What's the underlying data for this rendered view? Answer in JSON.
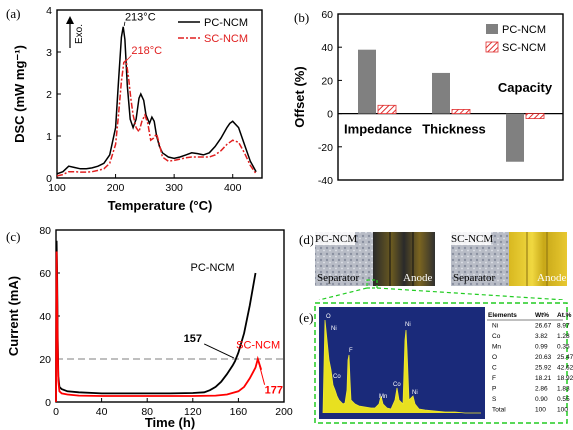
{
  "panels": {
    "a": {
      "label": "(a)",
      "exo_label": "Exo.",
      "xlabel": "Temperature (°C)",
      "ylabel": "DSC (mW mg⁻¹)",
      "xticks": [
        "100",
        "200",
        "300",
        "400"
      ],
      "yticks": [
        "0",
        "1",
        "2",
        "3",
        "4"
      ],
      "annotations": {
        "pc_peak": "213°C",
        "sc_peak": "218°C"
      },
      "legend": [
        "PC-NCM",
        "SC-NCM"
      ],
      "colors": {
        "pc": "#000000",
        "sc": "#e02020"
      }
    },
    "b": {
      "label": "(b)",
      "ylabel": "Offset (%)",
      "yticks": [
        "60",
        "40",
        "20",
        "0",
        "-20",
        "-40"
      ],
      "categories": [
        "Impedance",
        "Thickness",
        "Capacity"
      ],
      "legend": [
        "PC-NCM",
        "SC-NCM"
      ],
      "colors": {
        "pc": "#808080",
        "sc": "#e03030"
      }
    },
    "c": {
      "label": "(c)",
      "xlabel": "Time (h)",
      "ylabel": "Current (mA)",
      "xticks": [
        "0",
        "40",
        "80",
        "120",
        "160",
        "200"
      ],
      "yticks": [
        "0",
        "20",
        "40",
        "60",
        "80"
      ],
      "annotations": {
        "pc_label": "PC-NCM",
        "sc_label": "SC-NCM",
        "pc_time": "157",
        "sc_time": "177"
      },
      "colors": {
        "pc": "#000000",
        "sc": "#ff0000"
      }
    },
    "d": {
      "label": "(d)",
      "pc_title": "PC-NCM",
      "sc_title": "SC-NCM",
      "separator": "Separator",
      "anode": "Anode"
    },
    "e": {
      "label": "(e)",
      "table_headers": [
        "Elements",
        "Wt%",
        "At.%"
      ],
      "table_rows": [
        [
          "Ni",
          "26.67",
          "8.97"
        ],
        [
          "Co",
          "3.82",
          "1.28"
        ],
        [
          "Mn",
          "0.99",
          "0.35"
        ],
        [
          "O",
          "20.63",
          "25.47"
        ],
        [
          "C",
          "25.92",
          "42.62"
        ],
        [
          "F",
          "18.21",
          "18.92"
        ],
        [
          "P",
          "2.86",
          "1.83"
        ],
        [
          "S",
          "0.90",
          "0.55"
        ],
        [
          "Total",
          "100",
          "100"
        ]
      ]
    }
  },
  "chart_data": [
    {
      "type": "line",
      "xlabel": "Temperature (°C)",
      "ylabel": "DSC (mW mg⁻¹)",
      "xlim": [
        100,
        450
      ],
      "ylim": [
        0,
        4
      ],
      "series": [
        {
          "name": "PC-NCM",
          "x": [
            100,
            110,
            120,
            130,
            140,
            150,
            160,
            170,
            180,
            190,
            200,
            205,
            210,
            213,
            216,
            220,
            225,
            230,
            235,
            240,
            243,
            248,
            252,
            258,
            262,
            266,
            270,
            275,
            280,
            290,
            300,
            310,
            320,
            330,
            340,
            350,
            360,
            370,
            380,
            390,
            395,
            400,
            410,
            420,
            430,
            440
          ],
          "y": [
            0.1,
            0.15,
            0.28,
            0.25,
            0.22,
            0.22,
            0.24,
            0.28,
            0.35,
            0.55,
            1.2,
            2.3,
            3.35,
            3.6,
            3.3,
            2.2,
            1.4,
            1.2,
            1.4,
            1.9,
            2.0,
            1.85,
            1.5,
            1.3,
            1.45,
            1.35,
            1.0,
            0.75,
            0.6,
            0.5,
            0.47,
            0.5,
            0.55,
            0.6,
            0.58,
            0.55,
            0.6,
            0.75,
            0.95,
            1.2,
            1.3,
            1.35,
            1.2,
            0.8,
            0.4,
            0.15
          ]
        },
        {
          "name": "SC-NCM",
          "x": [
            100,
            110,
            120,
            130,
            140,
            150,
            160,
            170,
            180,
            190,
            200,
            205,
            210,
            214,
            218,
            222,
            226,
            230,
            235,
            240,
            245,
            250,
            255,
            260,
            265,
            270,
            275,
            280,
            290,
            300,
            310,
            320,
            330,
            340,
            350,
            360,
            370,
            380,
            390,
            400,
            410,
            420,
            430,
            440
          ],
          "y": [
            0.05,
            0.08,
            0.15,
            0.15,
            0.14,
            0.14,
            0.15,
            0.18,
            0.22,
            0.35,
            0.8,
            1.5,
            2.3,
            2.75,
            2.8,
            2.4,
            1.9,
            1.5,
            1.2,
            1.1,
            1.35,
            1.5,
            1.3,
            0.9,
            0.95,
            1.05,
            0.8,
            0.5,
            0.4,
            0.42,
            0.45,
            0.48,
            0.5,
            0.5,
            0.5,
            0.5,
            0.55,
            0.65,
            0.8,
            0.9,
            0.85,
            0.6,
            0.3,
            0.1
          ]
        }
      ],
      "annotations": [
        "213°C",
        "218°C"
      ]
    },
    {
      "type": "bar",
      "ylabel": "Offset (%)",
      "ylim": [
        -40,
        60
      ],
      "categories": [
        "Impedance",
        "Thickness",
        "Capacity"
      ],
      "series": [
        {
          "name": "PC-NCM",
          "values": [
            38.5,
            24.5,
            -29
          ]
        },
        {
          "name": "SC-NCM",
          "values": [
            5,
            2.5,
            -3
          ]
        }
      ]
    },
    {
      "type": "line",
      "xlabel": "Time (h)",
      "ylabel": "Current (mA)",
      "xlim": [
        0,
        200
      ],
      "ylim": [
        0,
        80
      ],
      "reference_line_y": 20,
      "series": [
        {
          "name": "PC-NCM",
          "x": [
            0,
            0.5,
            1,
            1.5,
            2,
            3,
            5,
            10,
            20,
            40,
            60,
            80,
            100,
            120,
            130,
            135,
            140,
            145,
            150,
            155,
            157,
            160,
            165,
            170,
            175
          ],
          "y": [
            0,
            75,
            60,
            30,
            12,
            7,
            6,
            5,
            4.5,
            4,
            4,
            4,
            4,
            4.2,
            4.5,
            5.5,
            7,
            9.5,
            13,
            17,
            19,
            23,
            32,
            45,
            60
          ]
        },
        {
          "name": "SC-NCM",
          "x": [
            0,
            0.5,
            1,
            1.5,
            2,
            3,
            5,
            10,
            20,
            40,
            60,
            80,
            100,
            120,
            140,
            150,
            160,
            165,
            170,
            175,
            177,
            180
          ],
          "y": [
            0,
            70,
            50,
            25,
            10,
            5,
            4,
            3.5,
            3,
            2.8,
            2.8,
            2.8,
            2.8,
            2.8,
            3,
            3.5,
            5,
            7,
            11,
            16,
            20,
            15
          ]
        }
      ],
      "annotations": [
        "157",
        "177"
      ]
    }
  ]
}
